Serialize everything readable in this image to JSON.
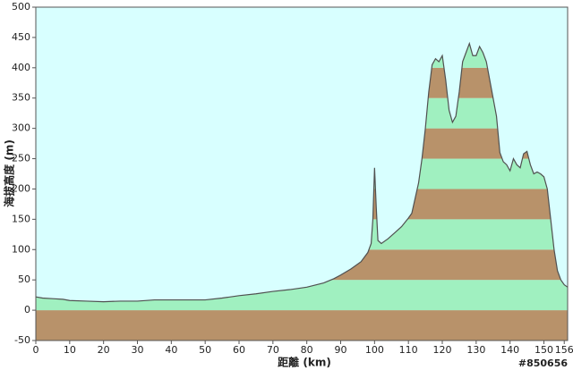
{
  "chart_data": {
    "type": "area",
    "x_label": "距離 (km)",
    "y_label": "海拔高度 (m)",
    "annotation": "#850656",
    "background": "#d8ffff",
    "line_color": "#505050",
    "band_colors": [
      "#b8926a",
      "#a0f0c0"
    ],
    "x": [
      0,
      2,
      5,
      8,
      10,
      15,
      20,
      25,
      30,
      35,
      40,
      45,
      50,
      55,
      60,
      65,
      70,
      75,
      80,
      85,
      88,
      90,
      93,
      96,
      98,
      99,
      99.5,
      100,
      100.5,
      101,
      102,
      104,
      106,
      108,
      110,
      111,
      112,
      113,
      114,
      115,
      116,
      117,
      118,
      119,
      120,
      121,
      122,
      123,
      124,
      125,
      126,
      127,
      128,
      129,
      130,
      131,
      132,
      133,
      134,
      135,
      136,
      137,
      138,
      139,
      140,
      141,
      142,
      143,
      144,
      145,
      146,
      147,
      148,
      149,
      150,
      151,
      152,
      153,
      154,
      155,
      156,
      157
    ],
    "y": [
      22,
      20,
      19,
      18,
      16,
      15,
      14,
      15,
      15,
      17,
      17,
      17,
      17,
      20,
      24,
      27,
      31,
      34,
      38,
      45,
      52,
      58,
      68,
      80,
      95,
      110,
      150,
      235,
      170,
      115,
      110,
      118,
      128,
      138,
      152,
      160,
      185,
      210,
      250,
      300,
      360,
      405,
      415,
      410,
      420,
      380,
      330,
      310,
      320,
      360,
      410,
      425,
      440,
      420,
      420,
      435,
      425,
      410,
      380,
      350,
      320,
      260,
      245,
      240,
      230,
      250,
      240,
      235,
      258,
      262,
      240,
      225,
      228,
      225,
      220,
      200,
      150,
      100,
      65,
      50,
      42,
      38
    ],
    "xlim": [
      0,
      157
    ],
    "ylim": [
      -50,
      500
    ],
    "xticks": [
      0,
      10,
      20,
      30,
      40,
      50,
      60,
      70,
      80,
      90,
      100,
      110,
      120,
      130,
      140,
      150,
      156
    ],
    "yticks": [
      -50,
      0,
      50,
      100,
      150,
      200,
      250,
      300,
      350,
      400,
      450,
      500
    ]
  }
}
